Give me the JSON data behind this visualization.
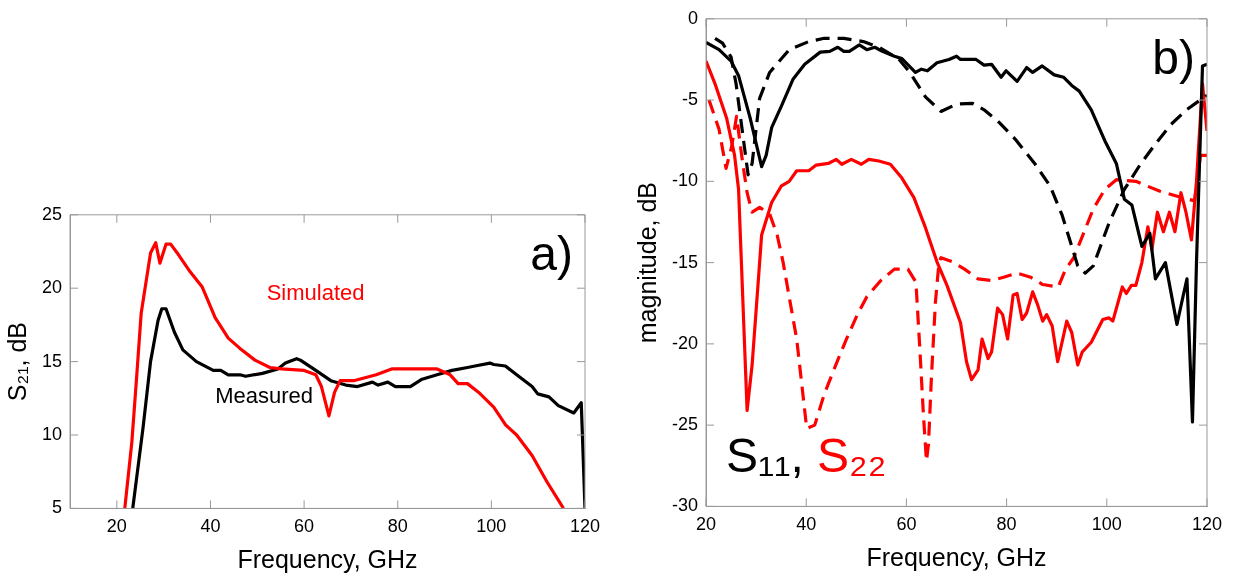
{
  "chart_data": [
    {
      "type": "line",
      "xlabel": "Frequency, GHz",
      "ylabel": "S₂₁, dB",
      "xlim": [
        10,
        120
      ],
      "ylim": [
        5,
        25
      ],
      "xticks": [
        20,
        40,
        60,
        80,
        100,
        120
      ],
      "yticks": [
        5,
        10,
        15,
        20,
        25
      ],
      "grid": false,
      "legend": false,
      "annotations": [
        "a)"
      ],
      "series": [
        {
          "name": "Simulated",
          "color": "#ff0000",
          "x": [
            21.7,
            23.2,
            24.2,
            25.2,
            27.2,
            28.3,
            29.2,
            30.5,
            31.5,
            32.9,
            35.7,
            38.2,
            41,
            43.8,
            46.3,
            49.5,
            52.7,
            55.2,
            60,
            62.5,
            63.7,
            65.3,
            66.5,
            67.7,
            70.6,
            75.4,
            78.7,
            80.3,
            88.4,
            91.2,
            92.9,
            94.9,
            97.3,
            100.5,
            103,
            105.4,
            108.7,
            111.9,
            115.4
          ],
          "values": [
            5,
            9.5,
            13.8,
            18.3,
            22.4,
            23.1,
            21.7,
            23,
            23,
            22.4,
            21.1,
            20.1,
            18,
            16.6,
            15.9,
            15.1,
            14.6,
            14.5,
            14.4,
            14.1,
            13.3,
            11.3,
            12.9,
            13.7,
            13.7,
            14.1,
            14.5,
            14.5,
            14.5,
            14.1,
            13.5,
            13.5,
            12.9,
            11.9,
            10.7,
            10,
            8.6,
            6.8,
            5
          ]
        },
        {
          "name": "Measured",
          "color": "#000000",
          "x": [
            23.4,
            25.6,
            27.2,
            28.8,
            29.6,
            30.5,
            32.3,
            34.1,
            37,
            40.6,
            42.2,
            43.8,
            46.3,
            47.5,
            51.1,
            54.4,
            56,
            58.4,
            59.2,
            62.5,
            65.7,
            68.9,
            71.4,
            74.6,
            75.8,
            77.9,
            79.5,
            82.7,
            85.2,
            88.4,
            91.6,
            94.9,
            96.5,
            99.7,
            100.5,
            103,
            105.4,
            108.7,
            109.9,
            112.3,
            114.3,
            117.6,
            119.2,
            120
          ],
          "values": [
            5,
            10.5,
            15,
            17.8,
            18.6,
            18.6,
            17,
            15.8,
            15,
            14.4,
            14.4,
            14.1,
            14.1,
            14,
            14.2,
            14.5,
            14.9,
            15.2,
            15.1,
            14.4,
            13.7,
            13.4,
            13.3,
            13.6,
            13.4,
            13.6,
            13.3,
            13.3,
            13.8,
            14.1,
            14.4,
            14.6,
            14.7,
            14.9,
            14.8,
            14.7,
            14.1,
            13.3,
            12.8,
            12.6,
            12,
            11.5,
            12.2,
            5
          ]
        }
      ]
    },
    {
      "type": "line",
      "xlabel": "Frequency, GHz",
      "ylabel": "magnitude, dB",
      "xlim": [
        20,
        120
      ],
      "ylim": [
        -30,
        0
      ],
      "xticks": [
        20,
        40,
        60,
        80,
        100,
        120
      ],
      "yticks": [
        -30,
        -25,
        -20,
        -15,
        -10,
        -5,
        0
      ],
      "grid": false,
      "legend": "bottom left",
      "annotations": [
        "b)"
      ],
      "series": [
        {
          "name": "S₁₁,",
          "color": "#000000",
          "line_style": "solid",
          "x": [
            20,
            22.6,
            25,
            26.5,
            28.8,
            31.1,
            32,
            33.1,
            35,
            37.4,
            39.7,
            42.8,
            44.7,
            46.3,
            47.5,
            48.6,
            50.6,
            52.1,
            53.7,
            55.2,
            57.6,
            59.1,
            61.8,
            63,
            64.2,
            66.1,
            68.5,
            70,
            70.8,
            73.9,
            75.5,
            77,
            78.9,
            79.9,
            82.1,
            84,
            85.2,
            87.1,
            89.5,
            91.4,
            93,
            94.5,
            96.9,
            99.6,
            101.9,
            103.5,
            105,
            107,
            108.6,
            109.7,
            111.7,
            114,
            115.2,
            116,
            117.1,
            117.9,
            119.1,
            120
          ],
          "values": [
            -1.45,
            -1.9,
            -2.6,
            -3.5,
            -6.1,
            -9.1,
            -8.4,
            -6.7,
            -5.4,
            -3.7,
            -2.8,
            -2.05,
            -2,
            -1.75,
            -2,
            -2,
            -1.6,
            -1.9,
            -1.75,
            -2,
            -2.3,
            -2.45,
            -3.3,
            -3.1,
            -3.2,
            -2.7,
            -2.5,
            -2.3,
            -2.5,
            -2.5,
            -2.85,
            -2.8,
            -3.6,
            -3.2,
            -3.85,
            -3,
            -3.3,
            -2.9,
            -3.45,
            -3.6,
            -4.1,
            -4.45,
            -5.6,
            -7.5,
            -8.9,
            -11.1,
            -11.45,
            -14,
            -13.2,
            -16,
            -15,
            -18.8,
            -17.1,
            -16,
            -24.8,
            -15,
            -2.9,
            -2.8
          ]
        },
        {
          "color": "#000000",
          "line_style": "dashed",
          "x": [
            21.8,
            23.3,
            25,
            26,
            27.2,
            28.4,
            29.2,
            30.7,
            32.7,
            36.6,
            40.5,
            43.6,
            47.5,
            51.4,
            54.5,
            58.4,
            60.7,
            63.8,
            66.9,
            70,
            73.2,
            75.5,
            78.6,
            81.7,
            85.6,
            88.7,
            91.1,
            93,
            94.2,
            95.7,
            97.3,
            100.4,
            103.5,
            106.6,
            109.7,
            112.8,
            115.9,
            120
          ],
          "values": [
            -1.2,
            -1.5,
            -2.35,
            -4,
            -6.8,
            -9.6,
            -8.9,
            -4.9,
            -3.3,
            -1.9,
            -1.4,
            -1.2,
            -1.2,
            -1.4,
            -1.75,
            -2.45,
            -3.3,
            -4.8,
            -5.7,
            -5.25,
            -5.2,
            -5.6,
            -6.4,
            -7.4,
            -8.9,
            -10.3,
            -12.1,
            -14,
            -15.2,
            -15.65,
            -15.2,
            -12.6,
            -10.5,
            -9,
            -7.7,
            -6.5,
            -5.6,
            -4.7
          ]
        },
        {
          "name": "S₂₂",
          "color": "#ff0000",
          "line_style": "solid",
          "x": [
            20,
            21.8,
            24.1,
            25.7,
            26.5,
            28.2,
            29.2,
            30.7,
            31.1,
            33.1,
            35,
            36.6,
            38.1,
            40.5,
            42,
            44.4,
            46,
            47.1,
            49,
            51,
            52.5,
            54.5,
            56.8,
            59.1,
            61.5,
            63.8,
            66.1,
            68.1,
            70.8,
            72,
            73,
            74.3,
            75.1,
            76.3,
            77,
            78.2,
            79.2,
            80.2,
            81.3,
            82.1,
            83.1,
            84,
            85.2,
            86.2,
            87.2,
            88,
            89.1,
            90.2,
            92,
            93,
            94.2,
            95.1,
            96.9,
            99.2,
            100.4,
            101.2,
            103.1,
            103.9,
            104.9,
            105.8,
            107,
            108.2,
            109,
            110.1,
            111.3,
            112.5,
            113.6,
            114.8,
            115.8,
            116.9,
            117.9,
            119.1,
            120
          ],
          "values": [
            -2.6,
            -4,
            -6.1,
            -8.4,
            -10.5,
            -24.1,
            -21.3,
            -15,
            -13.3,
            -11.3,
            -10.3,
            -10,
            -9.35,
            -9.35,
            -9,
            -8.9,
            -8.65,
            -8.95,
            -8.65,
            -8.95,
            -8.65,
            -8.75,
            -8.95,
            -9.8,
            -11,
            -12.85,
            -14.95,
            -16.4,
            -18.7,
            -21.1,
            -22.2,
            -21.6,
            -19.7,
            -20.9,
            -20.5,
            -17.8,
            -18.2,
            -19.7,
            -17,
            -16.9,
            -18.5,
            -18.1,
            -16.8,
            -17.6,
            -18.6,
            -18.2,
            -18.9,
            -21.1,
            -18.6,
            -19.3,
            -21.3,
            -20.5,
            -19.9,
            -18.5,
            -18.4,
            -18.6,
            -16.5,
            -16.9,
            -16.4,
            -16.4,
            -15,
            -12.8,
            -14.2,
            -11.9,
            -13.1,
            -11.9,
            -13.1,
            -10.7,
            -11.9,
            -13.6,
            -10,
            -4,
            -6.9
          ]
        },
        {
          "color": "#ff0000",
          "line_style": "dashed",
          "x": [
            20.6,
            22.6,
            24,
            25.1,
            26.1,
            27.2,
            28.2,
            29.2,
            30.7,
            32.7,
            34.2,
            35.4,
            36.6,
            38.1,
            39.3,
            40.1,
            41.7,
            43.6,
            45.9,
            47.9,
            50.2,
            52.1,
            54.9,
            57.6,
            60.3,
            61.9,
            62.7,
            63.4,
            64,
            64.4,
            65,
            65.8,
            66.5,
            66.9,
            69.2,
            71.6,
            74.3,
            77,
            79.4,
            82.1,
            84.8,
            87.2,
            90.3,
            91.8,
            93.4,
            94.9,
            97.3,
            99.6,
            101.9,
            105.8,
            110.5,
            114.4,
            117.5,
            118.7,
            120
          ],
          "values": [
            -5,
            -6.8,
            -9.2,
            -7.9,
            -6,
            -8.6,
            -10.7,
            -11.9,
            -11.6,
            -12,
            -13.3,
            -15,
            -17.1,
            -19.7,
            -23,
            -25.2,
            -25,
            -23.1,
            -21.3,
            -19.8,
            -18.2,
            -17.1,
            -16.1,
            -15.4,
            -15.4,
            -16.2,
            -20.4,
            -24.4,
            -27.2,
            -26.2,
            -22,
            -17.4,
            -15,
            -14.7,
            -14.95,
            -15.4,
            -16,
            -16.1,
            -15.9,
            -15.65,
            -15.9,
            -16.35,
            -16.5,
            -15.4,
            -14.7,
            -13.55,
            -11.7,
            -10.5,
            -9.9,
            -10,
            -10.6,
            -10.95,
            -11.2,
            -8.4,
            -8.4
          ]
        }
      ]
    }
  ]
}
